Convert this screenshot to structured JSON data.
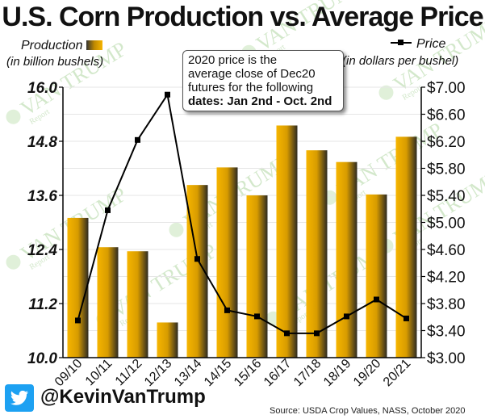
{
  "title": "U.S. Corn Production vs. Average Price",
  "legend": {
    "production_label": "Production",
    "production_unit": "(in billion bushels)",
    "price_label": "Price",
    "price_unit": "(in dollars per bushel)"
  },
  "annotation": {
    "line1": "2020 price is the",
    "line2": "average close of Dec20",
    "line3": "futures for the following",
    "line4": "dates: Jan 2nd - Oct. 2nd"
  },
  "footer": {
    "handle": "@KevinVanTrump",
    "source": "Source: USDA Crop Values, NASS, October 2020"
  },
  "watermark": {
    "name": "VAN TRUMP",
    "prefix": "The",
    "suffix": "Report"
  },
  "colors": {
    "bar_light": "#f6b500",
    "bar_dark": "#2e2a20",
    "price_line": "#000000",
    "twitter_blue": "#1da1f2"
  },
  "chart_data": {
    "type": "bar",
    "categories": [
      "09/10",
      "10/11",
      "11/12",
      "12/13",
      "13/14",
      "14/15",
      "15/16",
      "16/17",
      "17/18",
      "18/19",
      "19/20",
      "20/21"
    ],
    "series": [
      {
        "name": "Production",
        "type": "bar",
        "axis": "left",
        "values": [
          13.1,
          12.45,
          12.36,
          10.78,
          13.83,
          14.22,
          13.6,
          15.15,
          14.6,
          14.34,
          13.62,
          14.9
        ]
      },
      {
        "name": "Price",
        "type": "line",
        "axis": "right",
        "values": [
          3.55,
          5.18,
          6.22,
          6.89,
          4.46,
          3.7,
          3.61,
          3.36,
          3.36,
          3.61,
          3.86,
          3.58
        ]
      }
    ],
    "left_axis": {
      "ylim": [
        10.0,
        16.0
      ],
      "ticks": [
        "10.0",
        "11.2",
        "12.4",
        "13.6",
        "14.8",
        "16.0"
      ]
    },
    "right_axis": {
      "ylim": [
        3.0,
        7.0
      ],
      "ticks": [
        "$3.00",
        "$3.40",
        "$3.80",
        "$4.20",
        "$4.60",
        "$5.00",
        "$5.40",
        "$5.80",
        "$6.20",
        "$6.60",
        "$7.00"
      ]
    }
  }
}
